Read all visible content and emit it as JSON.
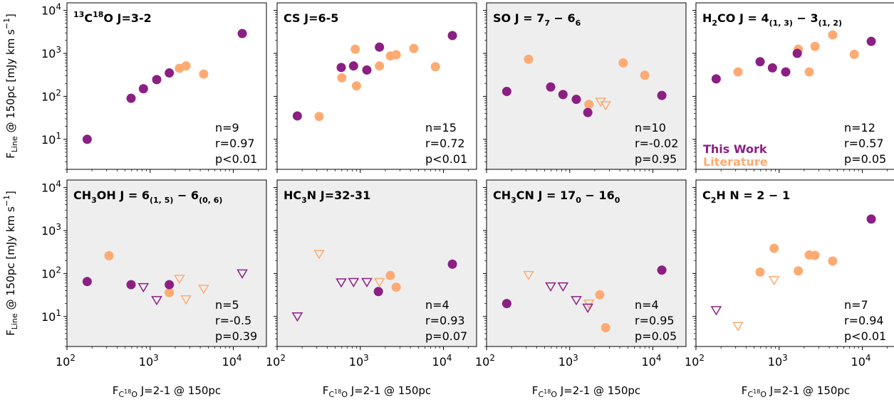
{
  "colors": {
    "this_work": "#8b1f83",
    "literature": "#fdab73",
    "shaded_bg": "#eeeeee",
    "plain_bg": "#ffffff"
  },
  "chart_data": {
    "type": "scatter",
    "layout": "2x4 grid of log-log panels",
    "shared_x_axis": {
      "label": "F_{C^{18}O} J=2-1 @ 150pc",
      "scale": "log",
      "range": [
        100,
        25000
      ],
      "ticks": [
        {
          "value": 100,
          "base": "10",
          "exp": "2"
        },
        {
          "value": 1000,
          "base": "10",
          "exp": "3"
        },
        {
          "value": 10000,
          "base": "10",
          "exp": "4"
        }
      ]
    },
    "shared_y_axis": {
      "label": "F_{Line} @ 150pc [mJy km s^{-1}]",
      "scale": "log",
      "range": [
        2,
        15000
      ],
      "ticks": [
        {
          "value": 10,
          "base": "10",
          "exp": "1"
        },
        {
          "value": 100,
          "base": "10",
          "exp": "2"
        },
        {
          "value": 1000,
          "base": "10",
          "exp": "3"
        },
        {
          "value": 10000,
          "base": "10",
          "exp": "4"
        }
      ]
    },
    "legend": {
      "position": "panel-4, lower-left",
      "entries": [
        {
          "label": "This Work",
          "series": "this_work"
        },
        {
          "label": "Literature",
          "series": "literature"
        }
      ]
    },
    "panels": [
      {
        "title": {
          "base": "",
          "parts": [
            [
              "^",
              "13"
            ],
            [
              "",
              "C"
            ],
            [
              "^",
              "18"
            ],
            [
              "",
              "O J=3-2"
            ]
          ]
        },
        "shaded": false,
        "stats": {
          "n": "n=9",
          "r": "r=0.97",
          "p": "p<0.01"
        },
        "this_work": [
          [
            175,
            10
          ],
          [
            590,
            90
          ],
          [
            830,
            150
          ],
          [
            1200,
            245
          ],
          [
            1700,
            350
          ],
          [
            12800,
            2900
          ]
        ],
        "literature": [
          [
            2250,
            450
          ],
          [
            2700,
            510
          ],
          [
            4400,
            330
          ]
        ],
        "this_work_upper": [],
        "literature_upper": []
      },
      {
        "title": {
          "base": "",
          "parts": [
            [
              "",
              "CS J=6-5"
            ]
          ]
        },
        "shaded": false,
        "stats": {
          "n": "n=15",
          "r": "r=0.72",
          "p": "p<0.01"
        },
        "this_work": [
          [
            175,
            35
          ],
          [
            590,
            470
          ],
          [
            830,
            510
          ],
          [
            1200,
            410
          ],
          [
            1700,
            1400
          ],
          [
            12800,
            2600
          ]
        ],
        "literature": [
          [
            320,
            34
          ],
          [
            600,
            270
          ],
          [
            870,
            1250
          ],
          [
            900,
            175
          ],
          [
            1700,
            510
          ],
          [
            2300,
            870
          ],
          [
            2700,
            930
          ],
          [
            4400,
            1300
          ],
          [
            8000,
            490
          ]
        ],
        "this_work_upper": [],
        "literature_upper": []
      },
      {
        "title": {
          "base": "",
          "parts": [
            [
              "",
              "SO J = 7"
            ],
            [
              "_",
              "7"
            ],
            [
              "",
              " − 6"
            ],
            [
              "_",
              "6"
            ]
          ]
        },
        "shaded": true,
        "stats": {
          "n": "n=10",
          "r": "r=-0.02",
          "p": "p=0.95"
        },
        "this_work": [
          [
            175,
            130
          ],
          [
            590,
            165
          ],
          [
            830,
            110
          ],
          [
            1200,
            85
          ],
          [
            1650,
            42
          ],
          [
            12800,
            105
          ]
        ],
        "literature": [
          [
            320,
            730
          ],
          [
            1700,
            65
          ],
          [
            4400,
            600
          ],
          [
            8000,
            310
          ]
        ],
        "this_work_upper": [],
        "literature_upper": [
          [
            2350,
            75
          ],
          [
            2700,
            62
          ]
        ]
      },
      {
        "title": {
          "base": "",
          "parts": [
            [
              "",
              "H"
            ],
            [
              "_",
              "2"
            ],
            [
              "",
              "CO J = 4"
            ],
            [
              "_",
              "(1, 3)"
            ],
            [
              "",
              " − 3"
            ],
            [
              "_",
              "(1, 2)"
            ]
          ]
        },
        "shaded": false,
        "stats": {
          "n": "n=12",
          "r": "r=0.57",
          "p": "p=0.05"
        },
        "this_work": [
          [
            175,
            255
          ],
          [
            590,
            640
          ],
          [
            830,
            460
          ],
          [
            1200,
            370
          ],
          [
            1650,
            1000
          ],
          [
            12800,
            1900
          ]
        ],
        "literature": [
          [
            320,
            370
          ],
          [
            1700,
            1250
          ],
          [
            2300,
            370
          ],
          [
            2700,
            1450
          ],
          [
            4400,
            2700
          ],
          [
            8000,
            950
          ]
        ],
        "this_work_upper": [],
        "literature_upper": []
      },
      {
        "title": {
          "base": "",
          "parts": [
            [
              "",
              "CH"
            ],
            [
              "_",
              "3"
            ],
            [
              "",
              "OH J = 6"
            ],
            [
              "_",
              "(1, 5)"
            ],
            [
              "",
              " − 6"
            ],
            [
              "_",
              "(0, 6)"
            ]
          ]
        },
        "shaded": true,
        "stats": {
          "n": "n=5",
          "r": "r=-0.5",
          "p": "p=0.39"
        },
        "this_work": [
          [
            175,
            65
          ],
          [
            590,
            55
          ],
          [
            1700,
            55
          ]
        ],
        "literature": [
          [
            320,
            260
          ],
          [
            1700,
            36
          ]
        ],
        "this_work_upper": [
          [
            830,
            48
          ],
          [
            1200,
            24
          ],
          [
            12800,
            100
          ]
        ],
        "literature_upper": [
          [
            2250,
            75
          ],
          [
            2700,
            25
          ],
          [
            4400,
            44
          ]
        ]
      },
      {
        "title": {
          "base": "",
          "parts": [
            [
              "",
              "HC"
            ],
            [
              "_",
              "3"
            ],
            [
              "",
              "N J=32-31"
            ]
          ]
        },
        "shaded": true,
        "stats": {
          "n": "n=4",
          "r": "r=0.93",
          "p": "p=0.07"
        },
        "this_work": [
          [
            1650,
            38
          ],
          [
            12800,
            165
          ]
        ],
        "literature": [
          [
            2300,
            90
          ],
          [
            2700,
            48
          ]
        ],
        "this_work_upper": [
          [
            175,
            10
          ],
          [
            590,
            62
          ],
          [
            830,
            63
          ],
          [
            1200,
            63
          ]
        ],
        "literature_upper": [
          [
            320,
            285
          ],
          [
            1700,
            63
          ]
        ]
      },
      {
        "title": {
          "base": "",
          "parts": [
            [
              "",
              "CH"
            ],
            [
              "_",
              "3"
            ],
            [
              "",
              "CN J = 17"
            ],
            [
              "_",
              "0"
            ],
            [
              "",
              " − 16"
            ],
            [
              "_",
              "0"
            ]
          ]
        },
        "shaded": true,
        "stats": {
          "n": "n=4",
          "r": "r=0.95",
          "p": "p=0.05"
        },
        "this_work": [
          [
            175,
            20
          ],
          [
            12800,
            120
          ]
        ],
        "literature": [
          [
            2300,
            32
          ],
          [
            2700,
            5.5
          ]
        ],
        "this_work_upper": [
          [
            590,
            50
          ],
          [
            830,
            50
          ],
          [
            1200,
            24
          ],
          [
            1650,
            16
          ]
        ],
        "literature_upper": [
          [
            320,
            92
          ],
          [
            1700,
            20
          ]
        ]
      },
      {
        "title": {
          "base": "",
          "parts": [
            [
              "",
              "C"
            ],
            [
              "_",
              "2"
            ],
            [
              "",
              "H N = 2 − 1"
            ]
          ]
        },
        "shaded": false,
        "stats": {
          "n": "n=7",
          "r": "r=0.94",
          "p": "p<0.01"
        },
        "this_work": [
          [
            12800,
            1850
          ]
        ],
        "literature": [
          [
            590,
            108
          ],
          [
            870,
            385
          ],
          [
            1700,
            115
          ],
          [
            2300,
            270
          ],
          [
            2700,
            265
          ],
          [
            4400,
            195
          ]
        ],
        "this_work_upper": [
          [
            175,
            14
          ]
        ],
        "literature_upper": [
          [
            320,
            6
          ],
          [
            870,
            70
          ]
        ]
      }
    ]
  }
}
